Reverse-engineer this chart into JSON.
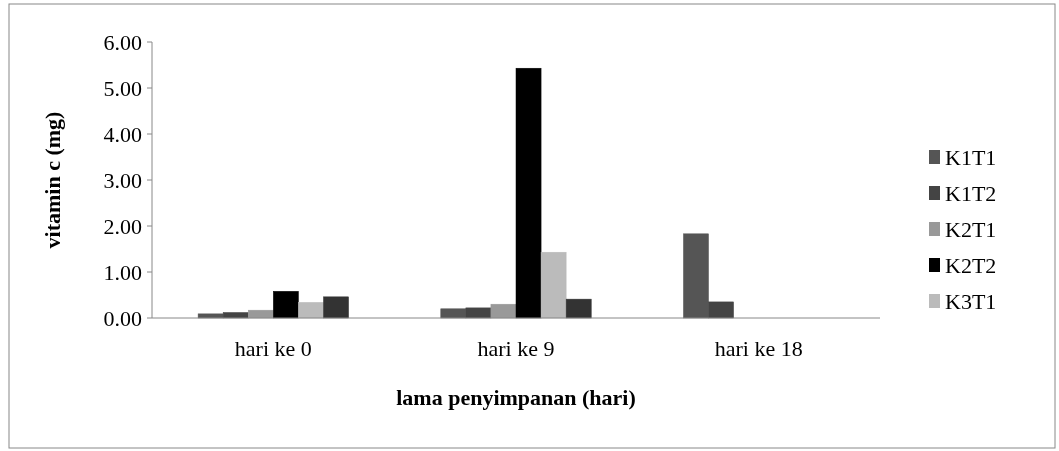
{
  "chart_data": {
    "type": "bar",
    "xlabel": "lama penyimpanan (hari)",
    "ylabel": "vitamin c (mg)",
    "categories": [
      "hari ke 0",
      "hari ke 9",
      "hari ke 18"
    ],
    "series": [
      {
        "name": "K1T1",
        "color": "#555555",
        "values": [
          0.09,
          0.2,
          1.83
        ]
      },
      {
        "name": "K1T2",
        "color": "#444444",
        "values": [
          0.12,
          0.22,
          0.35
        ]
      },
      {
        "name": "K2T1",
        "color": "#999999",
        "values": [
          0.17,
          0.3,
          null
        ]
      },
      {
        "name": "K2T2",
        "color": "#000000",
        "values": [
          0.58,
          5.43,
          null
        ]
      },
      {
        "name": "K3T1",
        "color": "#bbbbbb",
        "values": [
          0.34,
          1.43,
          null
        ]
      },
      {
        "color": "#333333",
        "values": [
          0.46,
          0.41,
          null
        ]
      }
    ],
    "ylim": [
      0,
      6
    ],
    "yticks": [
      {
        "value": 0,
        "label": "0.00"
      },
      {
        "value": 1,
        "label": "1.00"
      },
      {
        "value": 2,
        "label": "2.00"
      },
      {
        "value": 3,
        "label": "3.00"
      },
      {
        "value": 4,
        "label": "4.00"
      },
      {
        "value": 5,
        "label": "5.00"
      },
      {
        "value": 6,
        "label": "6.00"
      }
    ],
    "grid": false,
    "legend": "right"
  }
}
